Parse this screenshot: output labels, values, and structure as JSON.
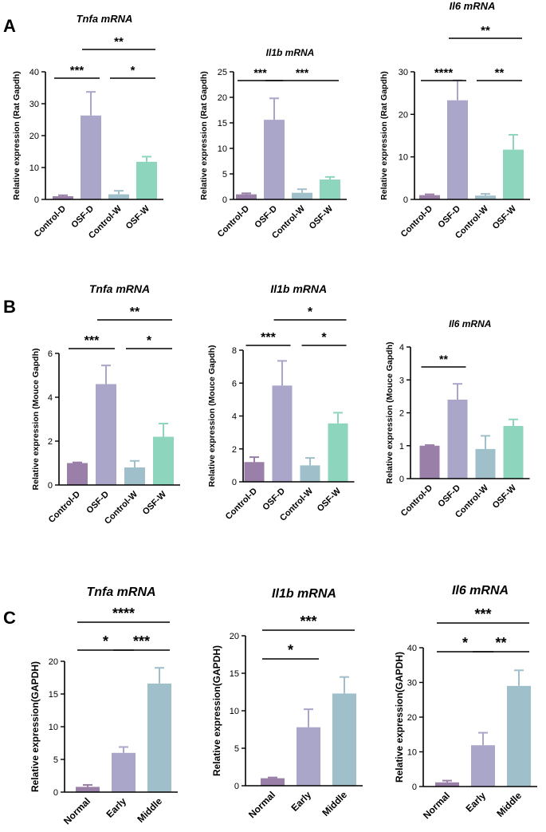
{
  "panels": [
    "A",
    "B",
    "C"
  ],
  "chart_data": [
    {
      "type": "bar",
      "panel": "A",
      "title": "Tnfa mRNA",
      "ylabel": "Relative expression (Rat Gapdh)",
      "categories": [
        "Control-D",
        "OSF-D",
        "Control-W",
        "OSF-W"
      ],
      "values": [
        1.0,
        26.3,
        1.6,
        11.8
      ],
      "errors": [
        0.3,
        7.4,
        1.1,
        1.6
      ],
      "ylim": [
        0,
        40
      ],
      "yticks": [
        0,
        10,
        20,
        30,
        40
      ],
      "colors": [
        "#9a7fa8",
        "#a9a6c9",
        "#9fc0cb",
        "#8dd6bd"
      ],
      "significance": [
        {
          "from": 0,
          "to": 1,
          "label": "***"
        },
        {
          "from": 1,
          "to": 3,
          "label": "**"
        },
        {
          "from": 2,
          "to": 3,
          "label": "*"
        }
      ]
    },
    {
      "type": "bar",
      "panel": "A",
      "title": "Il1b mRNA",
      "ylabel": "Relative expression (Rat Gapdh)",
      "categories": [
        "Control-D",
        "OSF-D",
        "Control-W",
        "OSF-W"
      ],
      "values": [
        1.0,
        15.6,
        1.3,
        3.9
      ],
      "errors": [
        0.2,
        4.2,
        0.7,
        0.5
      ],
      "ylim": [
        0,
        25
      ],
      "yticks": [
        0,
        5,
        10,
        15,
        20,
        25
      ],
      "colors": [
        "#9a7fa8",
        "#a9a6c9",
        "#9fc0cb",
        "#8dd6bd"
      ],
      "significance": [
        {
          "from": 0,
          "to": 1,
          "label": "***"
        },
        {
          "from": 1,
          "to": 3,
          "label": "***"
        }
      ]
    },
    {
      "type": "bar",
      "panel": "A",
      "title": "Il6 mRNA",
      "ylabel": "Relative expression (Rat Gapdh)",
      "categories": [
        "Control-D",
        "OSF-D",
        "Control-W",
        "OSF-W"
      ],
      "values": [
        1.0,
        23.3,
        0.9,
        11.7
      ],
      "errors": [
        0.2,
        4.7,
        0.4,
        3.5
      ],
      "ylim": [
        0,
        30
      ],
      "yticks": [
        0,
        10,
        20,
        30
      ],
      "colors": [
        "#9a7fa8",
        "#a9a6c9",
        "#9fc0cb",
        "#8dd6bd"
      ],
      "significance": [
        {
          "from": 0,
          "to": 1,
          "label": "****"
        },
        {
          "from": 1,
          "to": 3,
          "label": "**"
        },
        {
          "from": 2,
          "to": 3,
          "label": "**"
        }
      ]
    },
    {
      "type": "bar",
      "panel": "B",
      "title": "Tnfa mRNA",
      "ylabel": "Relative expression (Mouce Gapdh)",
      "categories": [
        "Control-D",
        "OSF-D",
        "Control-W",
        "OSF-W"
      ],
      "values": [
        1.0,
        4.6,
        0.8,
        2.2
      ],
      "errors": [
        0.03,
        0.85,
        0.3,
        0.6
      ],
      "ylim": [
        0,
        6
      ],
      "yticks": [
        0,
        2,
        4,
        6
      ],
      "colors": [
        "#9a7fa8",
        "#a9a6c9",
        "#9fc0cb",
        "#8dd6bd"
      ],
      "significance": [
        {
          "from": 0,
          "to": 1,
          "label": "***"
        },
        {
          "from": 1,
          "to": 3,
          "label": "**"
        },
        {
          "from": 2,
          "to": 3,
          "label": "*"
        }
      ]
    },
    {
      "type": "bar",
      "panel": "B",
      "title": "Il1b mRNA",
      "ylabel": "Relative expression (Mouce Gapdh)",
      "categories": [
        "Control-D",
        "OSF-D",
        "Control-W",
        "OSF-W"
      ],
      "values": [
        1.2,
        5.85,
        1.0,
        3.55
      ],
      "errors": [
        0.3,
        1.5,
        0.45,
        0.65
      ],
      "ylim": [
        0,
        8
      ],
      "yticks": [
        0,
        2,
        4,
        6,
        8
      ],
      "colors": [
        "#9a7fa8",
        "#a9a6c9",
        "#9fc0cb",
        "#8dd6bd"
      ],
      "significance": [
        {
          "from": 0,
          "to": 1,
          "label": "***"
        },
        {
          "from": 1,
          "to": 3,
          "label": "*"
        },
        {
          "from": 2,
          "to": 3,
          "label": "*"
        }
      ]
    },
    {
      "type": "bar",
      "panel": "B",
      "title": "Il6 mRNA",
      "ylabel": "Relative expression (Mouce Gapdh)",
      "categories": [
        "Control-D",
        "OSF-D",
        "Control-W",
        "OSF-W"
      ],
      "values": [
        1.0,
        2.4,
        0.9,
        1.6
      ],
      "errors": [
        0.02,
        0.48,
        0.4,
        0.2
      ],
      "ylim": [
        0,
        4
      ],
      "yticks": [
        0,
        1,
        2,
        3,
        4
      ],
      "colors": [
        "#9a7fa8",
        "#a9a6c9",
        "#9fc0cb",
        "#8dd6bd"
      ],
      "significance": [
        {
          "from": 0,
          "to": 1,
          "label": "**"
        }
      ]
    },
    {
      "type": "bar",
      "panel": "C",
      "title": "Tnfa mRNA",
      "ylabel": "Relative expression(GAPDH)",
      "categories": [
        "Normal",
        "Early",
        "Middle"
      ],
      "values": [
        0.8,
        6.0,
        16.6
      ],
      "errors": [
        0.3,
        0.9,
        2.4
      ],
      "ylim": [
        0,
        20
      ],
      "yticks": [
        0,
        5,
        10,
        15,
        20
      ],
      "colors": [
        "#9a7fa8",
        "#a9a6c9",
        "#9fc0cb"
      ],
      "significance": [
        {
          "from": 0,
          "to": 2,
          "label": "****"
        },
        {
          "from": 0,
          "to": 1,
          "label": "*"
        },
        {
          "from": 1,
          "to": 2,
          "label": "***"
        }
      ]
    },
    {
      "type": "bar",
      "panel": "C",
      "title": "Il1b mRNA",
      "ylabel": "Relative expression(GAPDH)",
      "categories": [
        "Normal",
        "Early",
        "Middle"
      ],
      "values": [
        1.0,
        7.8,
        12.3
      ],
      "errors": [
        0.1,
        2.4,
        2.2
      ],
      "ylim": [
        0,
        20
      ],
      "yticks": [
        0,
        5,
        10,
        15,
        20
      ],
      "colors": [
        "#9a7fa8",
        "#a9a6c9",
        "#9fc0cb"
      ],
      "significance": [
        {
          "from": 0,
          "to": 2,
          "label": "***"
        },
        {
          "from": 0,
          "to": 1,
          "label": "*"
        }
      ]
    },
    {
      "type": "bar",
      "panel": "C",
      "title": "Il6 mRNA",
      "ylabel": "Relative expression(GAPDH)",
      "categories": [
        "Normal",
        "Early",
        "Middle"
      ],
      "values": [
        1.2,
        11.9,
        29.0
      ],
      "errors": [
        0.5,
        3.6,
        4.5
      ],
      "ylim": [
        0,
        40
      ],
      "yticks": [
        0,
        10,
        20,
        30,
        40
      ],
      "colors": [
        "#9a7fa8",
        "#a9a6c9",
        "#9fc0cb"
      ],
      "significance": [
        {
          "from": 0,
          "to": 2,
          "label": "***"
        },
        {
          "from": 0,
          "to": 1,
          "label": "*"
        },
        {
          "from": 1,
          "to": 2,
          "label": "**"
        }
      ]
    }
  ]
}
